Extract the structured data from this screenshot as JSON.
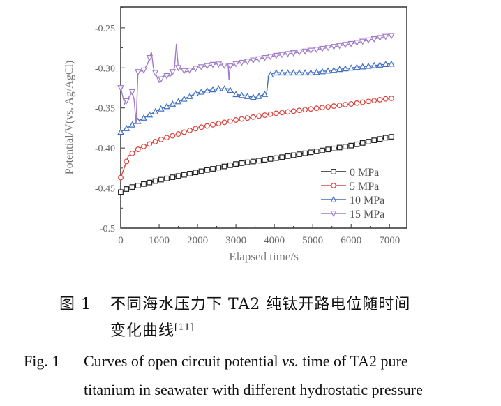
{
  "chart_data": {
    "type": "line",
    "xlabel": "Elapsed time/s",
    "ylabel": "Potential/V(vs. Ag/AgCl)",
    "xlim": [
      0,
      7450
    ],
    "ylim": [
      -0.5,
      -0.224
    ],
    "xticks": [
      0,
      1000,
      2000,
      3000,
      4000,
      5000,
      6000,
      7000
    ],
    "xtick_labels": [
      "0",
      "1000",
      "2000",
      "3000",
      "4000",
      "5000",
      "6000",
      "7000"
    ],
    "yticks": [
      -0.25,
      -0.3,
      -0.35,
      -0.4,
      -0.45,
      -0.5
    ],
    "ytick_labels": [
      "-0.25",
      "-0.30",
      "-0.35",
      "-0.40",
      "-0.45",
      "-0.5"
    ],
    "grid": false,
    "legend_position": "bottom-right",
    "series": [
      {
        "name": "0 MPa",
        "color": "#222222",
        "marker": "square",
        "x": [
          0,
          200,
          1000,
          2000,
          3000,
          4000,
          5000,
          6000,
          7000
        ],
        "y": [
          -0.455,
          -0.45,
          -0.44,
          -0.43,
          -0.42,
          -0.413,
          -0.405,
          -0.397,
          -0.386
        ]
      },
      {
        "name": "5 MPa",
        "color": "#e0403a",
        "marker": "circle",
        "x": [
          0,
          200,
          500,
          1000,
          2000,
          3000,
          4000,
          5000,
          6000,
          7000
        ],
        "y": [
          -0.437,
          -0.41,
          -0.4,
          -0.39,
          -0.375,
          -0.365,
          -0.357,
          -0.351,
          -0.345,
          -0.338
        ]
      },
      {
        "name": "10 MPa",
        "color": "#3f6fc0",
        "marker": "triangle-up",
        "x": [
          0,
          500,
          1000,
          1500,
          2000,
          2500,
          2800,
          3000,
          3500,
          3800,
          3850,
          4000,
          5000,
          6000,
          7000
        ],
        "y": [
          -0.38,
          -0.365,
          -0.352,
          -0.342,
          -0.331,
          -0.326,
          -0.326,
          -0.333,
          -0.337,
          -0.332,
          -0.31,
          -0.306,
          -0.306,
          -0.3,
          -0.295
        ]
      },
      {
        "name": "15 MPa",
        "color": "#a07cc8",
        "marker": "triangle-down",
        "x": [
          0,
          100,
          300,
          350,
          400,
          450,
          600,
          700,
          800,
          850,
          1000,
          1100,
          1300,
          1400,
          1450,
          1500,
          1700,
          2000,
          2500,
          2800,
          2820,
          2850,
          3000,
          4000,
          5000,
          6000,
          7000
        ],
        "y": [
          -0.325,
          -0.345,
          -0.33,
          -0.34,
          -0.37,
          -0.305,
          -0.303,
          -0.295,
          -0.28,
          -0.3,
          -0.318,
          -0.31,
          -0.31,
          -0.3,
          -0.27,
          -0.3,
          -0.305,
          -0.3,
          -0.295,
          -0.298,
          -0.315,
          -0.298,
          -0.295,
          -0.285,
          -0.278,
          -0.27,
          -0.26
        ]
      }
    ]
  },
  "caption": {
    "cn_label": "图 1",
    "cn_line1": "不同海水压力下 TA2 纯钛开路电位随时间",
    "cn_line2": "变化曲线",
    "cn_ref": "[11]",
    "en_label": "Fig. 1",
    "en_line1_a": "Curves of open circuit potential ",
    "en_line1_vs": "vs.",
    "en_line1_b": " time of TA2 pure",
    "en_line2": "titanium in seawater with different hydrostatic pressure"
  }
}
